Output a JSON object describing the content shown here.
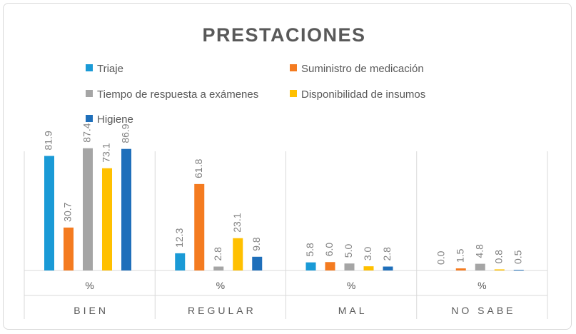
{
  "chart_data": {
    "type": "bar",
    "title": "PRESTACIONES",
    "xlabel": "",
    "ylabel": "",
    "ylim": [
      0,
      100
    ],
    "grid": false,
    "legend_position": "top",
    "categories": [
      "BIEN",
      "REGULAR",
      "MAL",
      "NO SABE"
    ],
    "sub_label": "%",
    "series": [
      {
        "name": "Triaje",
        "color": "#1a9ad6",
        "values": [
          81.9,
          12.3,
          5.8,
          0.0
        ],
        "labels": [
          "81.9",
          "12.3",
          "5.8",
          "0.0"
        ]
      },
      {
        "name": "Suministro de medicación",
        "color": "#f47b20",
        "values": [
          30.7,
          61.8,
          6.0,
          1.5
        ],
        "labels": [
          "30.7",
          "61.8",
          "6.0",
          "1.5"
        ]
      },
      {
        "name": "Tiempo de respuesta a exámenes",
        "color": "#a5a5a5",
        "values": [
          87.4,
          2.8,
          5.0,
          4.8
        ],
        "labels": [
          "87.4",
          "2.8",
          "5.0",
          "4.8"
        ]
      },
      {
        "name": "Disponibilidad de insumos",
        "color": "#ffc000",
        "values": [
          73.1,
          23.1,
          3.0,
          0.8
        ],
        "labels": [
          "73.1",
          "23.1",
          "3.0",
          "0.8"
        ]
      },
      {
        "name": "Higiene",
        "color": "#1f6fba",
        "values": [
          86.9,
          9.8,
          2.8,
          0.5
        ],
        "labels": [
          "86.9",
          "9.8",
          "2.8",
          "0.5"
        ]
      }
    ]
  }
}
